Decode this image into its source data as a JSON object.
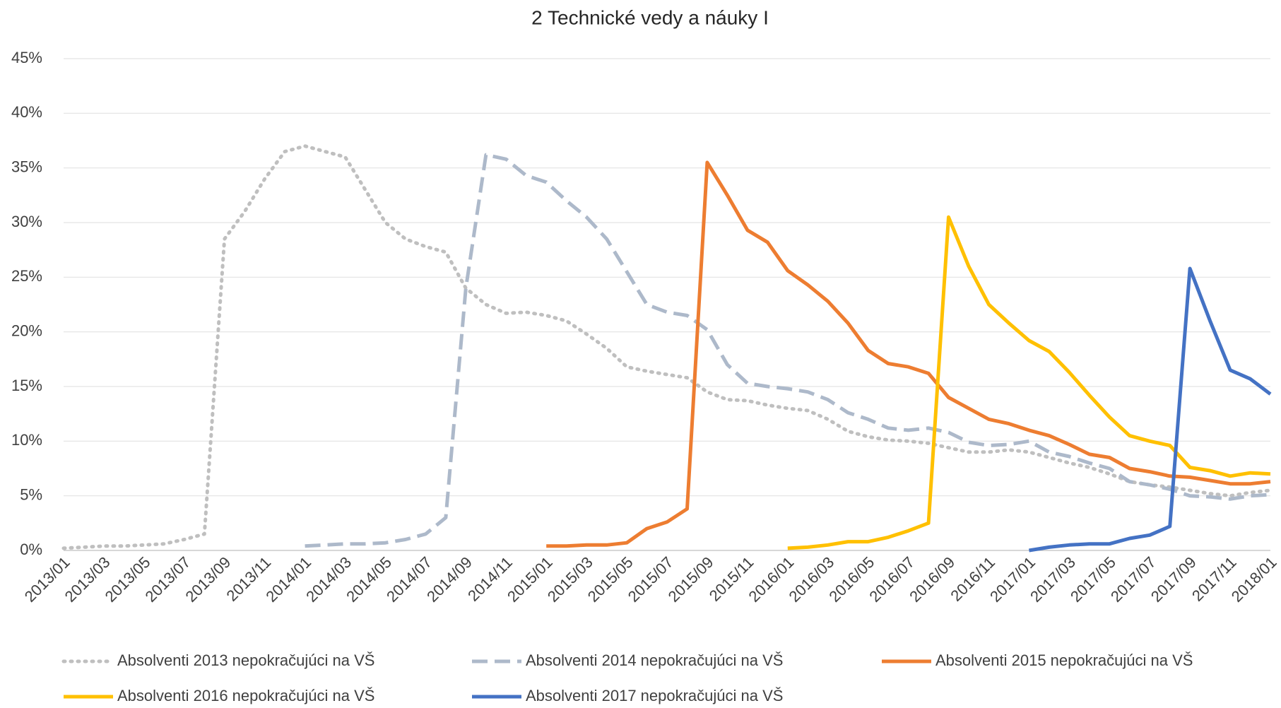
{
  "chart_data": {
    "type": "line",
    "title": "2 Technické vedy a náuky I",
    "categories": [
      "2013/01",
      null,
      "2013/03",
      null,
      "2013/05",
      null,
      "2013/07",
      null,
      "2013/09",
      null,
      "2013/11",
      null,
      "2014/01",
      null,
      "2014/03",
      null,
      "2014/05",
      null,
      "2014/07",
      null,
      "2014/09",
      null,
      "2014/11",
      null,
      "2015/01",
      null,
      "2015/03",
      null,
      "2015/05",
      null,
      "2015/07",
      null,
      "2015/09",
      null,
      "2015/11",
      null,
      "2016/01",
      null,
      "2016/03",
      null,
      "2016/05",
      null,
      "2016/07",
      null,
      "2016/09",
      null,
      "2016/11",
      null,
      "2017/01",
      null,
      "2017/03",
      null,
      "2017/05",
      null,
      "2017/07",
      null,
      "2017/09",
      null,
      "2017/11",
      null,
      "2018/01"
    ],
    "series": [
      {
        "name": "Absolventi 2013 nepokračujúci na VŠ",
        "color": "#bfbfbf",
        "line_style": "dotted",
        "values": [
          0.2,
          0.3,
          0.4,
          0.4,
          0.5,
          0.6,
          1.0,
          1.5,
          28.5,
          31,
          34,
          36.5,
          37,
          36.5,
          36,
          33,
          30,
          28.5,
          27.8,
          27.3,
          24,
          22.5,
          21.7,
          21.8,
          21.5,
          21,
          19.8,
          18.5,
          16.8,
          16.4,
          16.1,
          15.8,
          14.5,
          13.8,
          13.7,
          13.3,
          13.0,
          12.8,
          12,
          10.9,
          10.4,
          10.1,
          10,
          9.8,
          9.4,
          9.0,
          9.0,
          9.2,
          9.0,
          8.5,
          8.0,
          7.6,
          7.0,
          6.3,
          6.0,
          5.8,
          5.5,
          5.2,
          5.0,
          5.3,
          5.5
        ]
      },
      {
        "name": "Absolventi 2014 nepokračujúci na VŠ",
        "color": "#adb9ca",
        "line_style": "dashed",
        "values": [
          null,
          null,
          null,
          null,
          null,
          null,
          null,
          null,
          null,
          null,
          null,
          null,
          0.4,
          0.5,
          0.6,
          0.6,
          0.7,
          1.0,
          1.5,
          3.0,
          24,
          36.2,
          35.8,
          34.3,
          33.7,
          32,
          30.5,
          28.5,
          25.5,
          22.5,
          21.8,
          21.5,
          20.2,
          17,
          15.3,
          15.0,
          14.8,
          14.5,
          13.8,
          12.6,
          12.0,
          11.2,
          11.0,
          11.2,
          10.8,
          9.9,
          9.6,
          9.7,
          10,
          9.0,
          8.6,
          8.0,
          7.5,
          6.3,
          6.0,
          5.6,
          5.0,
          4.9,
          4.7,
          5.0,
          5.1
        ]
      },
      {
        "name": "Absolventi 2015 nepokračujúci na VŠ",
        "color": "#ed7d31",
        "line_style": "solid",
        "values": [
          null,
          null,
          null,
          null,
          null,
          null,
          null,
          null,
          null,
          null,
          null,
          null,
          null,
          null,
          null,
          null,
          null,
          null,
          null,
          null,
          null,
          null,
          null,
          null,
          0.4,
          0.4,
          0.5,
          0.5,
          0.7,
          2.0,
          2.6,
          3.8,
          35.5,
          32.5,
          29.3,
          28.2,
          25.6,
          24.3,
          22.8,
          20.8,
          18.3,
          17.1,
          16.8,
          16.2,
          14.0,
          13.0,
          12.0,
          11.6,
          11.0,
          10.5,
          9.7,
          8.8,
          8.5,
          7.5,
          7.2,
          6.8,
          6.7,
          6.4,
          6.1,
          6.1,
          6.3
        ]
      },
      {
        "name": "Absolventi 2016 nepokračujúci na VŠ",
        "color": "#ffc000",
        "line_style": "solid",
        "values": [
          null,
          null,
          null,
          null,
          null,
          null,
          null,
          null,
          null,
          null,
          null,
          null,
          null,
          null,
          null,
          null,
          null,
          null,
          null,
          null,
          null,
          null,
          null,
          null,
          null,
          null,
          null,
          null,
          null,
          null,
          null,
          null,
          null,
          null,
          null,
          null,
          0.2,
          0.3,
          0.5,
          0.8,
          0.8,
          1.2,
          1.8,
          2.5,
          30.5,
          26,
          22.5,
          20.8,
          19.2,
          18.2,
          16.3,
          14.2,
          12.2,
          10.5,
          10.0,
          9.6,
          7.6,
          7.3,
          6.8,
          7.1,
          7.0
        ]
      },
      {
        "name": "Absolventi 2017 nepokračujúci na VŠ",
        "color": "#4472c4",
        "line_style": "solid",
        "values": [
          null,
          null,
          null,
          null,
          null,
          null,
          null,
          null,
          null,
          null,
          null,
          null,
          null,
          null,
          null,
          null,
          null,
          null,
          null,
          null,
          null,
          null,
          null,
          null,
          null,
          null,
          null,
          null,
          null,
          null,
          null,
          null,
          null,
          null,
          null,
          null,
          null,
          null,
          null,
          null,
          null,
          null,
          null,
          null,
          null,
          null,
          null,
          null,
          0.0,
          0.3,
          0.5,
          0.6,
          0.6,
          1.1,
          1.4,
          2.2,
          25.8,
          21,
          16.5,
          15.7,
          14.3
        ]
      }
    ],
    "ylim": [
      0,
      45
    ],
    "yticks": [
      {
        "value": 0,
        "label": "0%"
      },
      {
        "value": 5,
        "label": "5%"
      },
      {
        "value": 10,
        "label": "10%"
      },
      {
        "value": 15,
        "label": "15%"
      },
      {
        "value": 20,
        "label": "20%"
      },
      {
        "value": 25,
        "label": "25%"
      },
      {
        "value": 30,
        "label": "30%"
      },
      {
        "value": 35,
        "label": "35%"
      },
      {
        "value": 40,
        "label": "40%"
      },
      {
        "value": 45,
        "label": "45%"
      }
    ],
    "grid": true,
    "legend": "bottom"
  }
}
